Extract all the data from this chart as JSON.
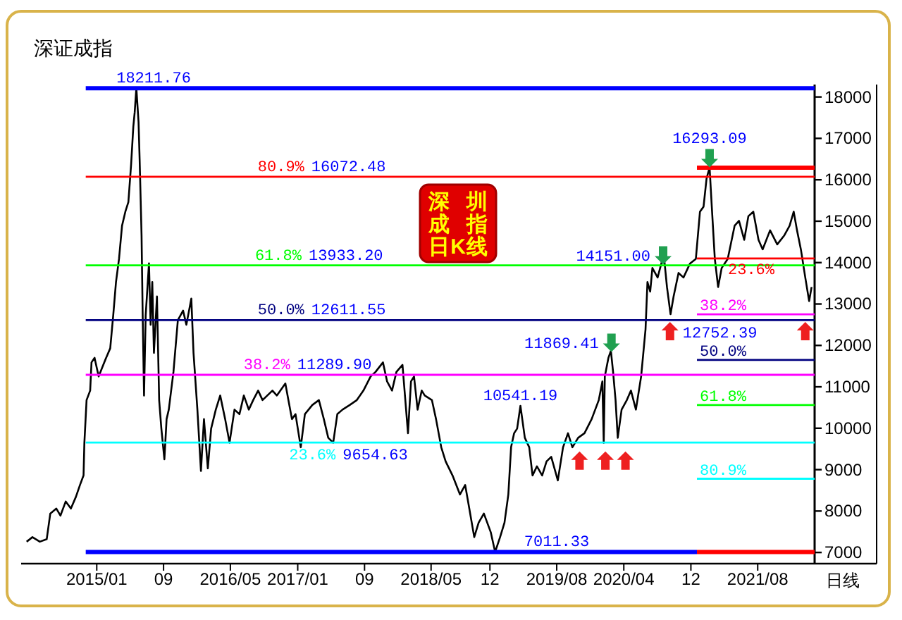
{
  "chart_data": {
    "type": "line",
    "title": "深证成指",
    "xlim": [
      "2014-04-01",
      "2022-02-24"
    ],
    "xticks": [
      {
        "value": "2015-01-01",
        "label": "2015/01"
      },
      {
        "value": "2015-09-01",
        "label": "09"
      },
      {
        "value": "2016-05-01",
        "label": "2016/05"
      },
      {
        "value": "2017-01-01",
        "label": "2017/01"
      },
      {
        "value": "2017-09-01",
        "label": "09"
      },
      {
        "value": "2018-05-01",
        "label": "2018/05"
      },
      {
        "value": "2018-12-01",
        "label": "12"
      },
      {
        "value": "2019-08-01",
        "label": "2019/08"
      },
      {
        "value": "2020-04-01",
        "label": "2020/04"
      },
      {
        "value": "2020-12-01",
        "label": "12"
      },
      {
        "value": "2021-08-01",
        "label": "2021/08"
      }
    ],
    "ylim": [
      6730,
      18300
    ],
    "yticks": [
      7000,
      8000,
      9000,
      10000,
      11000,
      12000,
      13000,
      14000,
      15000,
      16000,
      17000,
      18000
    ],
    "series": [
      {
        "type": "line",
        "color": "#000000",
        "x": [
          "2014-04-21",
          "2014-05-12",
          "2014-06-08",
          "2014-07-03",
          "2014-07-16",
          "2014-08-07",
          "2014-08-22",
          "2014-09-10",
          "2014-09-29",
          "2014-10-17",
          "2014-11-01",
          "2014-11-14",
          "2014-11-17",
          "2014-11-25",
          "2014-12-08",
          "2014-12-13",
          "2014-12-24",
          "2015-01-08",
          "2015-01-21",
          "2015-02-04",
          "2015-02-19",
          "2015-03-02",
          "2015-03-12",
          "2015-03-23",
          "2015-04-03",
          "2015-04-15",
          "2015-04-26",
          "2015-05-06",
          "2015-05-14",
          "2015-05-19",
          "2015-05-25",
          "2015-06-02",
          "2015-06-06",
          "2015-06-13",
          "2015-06-17",
          "2015-06-22",
          "2015-06-28",
          "2015-07-10",
          "2015-07-16",
          "2015-07-22",
          "2015-07-28",
          "2015-08-08",
          "2015-08-16",
          "2015-08-24",
          "2015-09-04",
          "2015-09-12",
          "2015-09-20",
          "2015-10-07",
          "2015-10-23",
          "2015-11-11",
          "2015-11-23",
          "2015-12-11",
          "2015-12-19",
          "2016-01-02",
          "2016-01-15",
          "2016-01-26",
          "2016-02-09",
          "2016-02-21",
          "2016-03-09",
          "2016-03-25",
          "2016-04-12",
          "2016-04-28",
          "2016-05-16",
          "2016-06-03",
          "2016-06-19",
          "2016-07-07",
          "2016-07-23",
          "2016-08-10",
          "2016-08-26",
          "2016-10-01",
          "2016-10-17",
          "2016-11-17",
          "2016-11-28",
          "2016-12-11",
          "2016-12-24",
          "2017-01-12",
          "2017-01-27",
          "2017-02-23",
          "2017-03-19",
          "2017-04-06",
          "2017-04-22",
          "2017-05-10",
          "2017-05-25",
          "2017-06-13",
          "2017-07-09",
          "2017-08-04",
          "2017-08-28",
          "2017-09-23",
          "2017-10-11",
          "2017-11-07",
          "2017-11-22",
          "2017-12-10",
          "2017-12-26",
          "2018-01-17",
          "2018-02-06",
          "2018-02-17",
          "2018-02-28",
          "2018-03-13",
          "2018-03-28",
          "2018-04-08",
          "2018-05-04",
          "2018-05-19",
          "2018-06-07",
          "2018-06-23",
          "2018-07-18",
          "2018-08-14",
          "2018-09-02",
          "2018-09-17",
          "2018-10-05",
          "2018-10-21",
          "2018-11-09",
          "2018-12-04",
          "2018-12-20",
          "2019-01-07",
          "2019-01-23",
          "2019-02-06",
          "2019-02-16",
          "2019-02-27",
          "2019-03-10",
          "2019-03-22",
          "2019-04-07",
          "2019-04-23",
          "2019-05-05",
          "2019-05-21",
          "2019-06-09",
          "2019-06-25",
          "2019-07-12",
          "2019-08-05",
          "2019-08-24",
          "2019-09-11",
          "2019-09-27",
          "2019-10-18",
          "2019-11-10",
          "2019-12-06",
          "2020-01-01",
          "2020-01-14",
          "2020-01-19",
          "2020-01-23",
          "2020-02-05",
          "2020-02-14",
          "2020-02-22",
          "2020-03-02",
          "2020-03-10",
          "2020-03-24",
          "2020-04-12",
          "2020-04-27",
          "2020-05-15",
          "2020-06-03",
          "2020-06-11",
          "2020-06-19",
          "2020-06-26",
          "2020-07-06",
          "2020-07-14",
          "2020-08-02",
          "2020-08-18",
          "2020-08-25",
          "2020-09-05",
          "2020-09-18",
          "2020-09-29",
          "2020-10-17",
          "2020-11-04",
          "2020-11-28",
          "2020-12-19",
          "2021-01-03",
          "2021-01-16",
          "2021-01-27",
          "2021-02-07",
          "2021-02-15",
          "2021-02-26",
          "2021-03-10",
          "2021-03-23",
          "2021-04-14",
          "2021-05-09",
          "2021-05-25",
          "2021-06-13",
          "2021-06-28",
          "2021-07-16",
          "2021-08-04",
          "2021-08-19",
          "2021-09-15",
          "2021-10-11",
          "2021-11-06",
          "2021-11-25",
          "2021-12-10",
          "2021-12-22",
          "2022-01-05",
          "2022-01-21",
          "2022-02-04",
          "2022-02-13"
        ],
        "values": [
          7260,
          7370,
          7260,
          7320,
          7940,
          8060,
          7890,
          8230,
          8060,
          8340,
          8630,
          8860,
          9650,
          10680,
          10910,
          11590,
          11700,
          11250,
          11470,
          11700,
          11930,
          12730,
          13530,
          14090,
          14890,
          15230,
          15460,
          16370,
          17280,
          17630,
          18211.76,
          17400,
          16490,
          14660,
          12730,
          10790,
          12730,
          13980,
          12500,
          13530,
          11820,
          13180,
          10680,
          9990,
          9250,
          10220,
          10450,
          11360,
          12610,
          12840,
          12500,
          13130,
          11820,
          10450,
          8970,
          10220,
          9030,
          9990,
          10450,
          10790,
          10220,
          9650,
          10450,
          10340,
          10790,
          10450,
          10680,
          10910,
          10680,
          10910,
          10790,
          11080,
          10680,
          10220,
          10340,
          9540,
          10340,
          10560,
          10680,
          10220,
          9770,
          9650,
          10340,
          10450,
          10560,
          10680,
          10910,
          11250,
          11360,
          11590,
          11130,
          10910,
          11360,
          11530,
          9880,
          11130,
          11250,
          10450,
          10910,
          10790,
          10680,
          10220,
          9540,
          9200,
          8860,
          8400,
          8630,
          8060,
          7370,
          7720,
          7940,
          7490,
          7011.33,
          7370,
          7720,
          8400,
          9540,
          9880,
          9990,
          10541.19,
          9770,
          9540,
          8860,
          9080,
          8860,
          9200,
          9310,
          8740,
          9540,
          9880,
          9540,
          9770,
          9880,
          10220,
          10680,
          11130,
          9650,
          11250,
          11700,
          11869.41,
          11360,
          10680,
          9770,
          10450,
          10680,
          10910,
          10450,
          11250,
          11820,
          12390,
          13530,
          13300,
          13870,
          13640,
          14040,
          14151,
          13410,
          12752.39,
          13180,
          13750,
          13640,
          13980,
          14090,
          15230,
          15350,
          16030,
          16293.09,
          15350,
          14090,
          13410,
          13870,
          14090,
          14890,
          15010,
          14550,
          15120,
          15230,
          14550,
          14320,
          14780,
          14440,
          14660,
          14890,
          15230,
          14780,
          14320,
          13640,
          13070,
          13410
        ]
      },
      {
        "type": "line",
        "color": "#0000ff",
        "x": [
          "2014-11-22",
          "2022-02-24"
        ],
        "values": [
          18211.76,
          18211.76
        ]
      },
      {
        "type": "line",
        "name": "80.9%",
        "color": "#ff0000",
        "x": [
          "2014-11-22",
          "2022-02-24"
        ],
        "values": [
          16072.48,
          16072.48
        ]
      },
      {
        "type": "line",
        "name": "61.8%",
        "color": "#00ff00",
        "x": [
          "2014-11-22",
          "2022-02-24"
        ],
        "values": [
          13933.2,
          13933.2
        ]
      },
      {
        "type": "line",
        "name": "50.0%",
        "color": "#000080",
        "x": [
          "2014-11-22",
          "2022-02-24"
        ],
        "values": [
          12611.55,
          12611.55
        ]
      },
      {
        "type": "line",
        "name": "38.2%",
        "color": "#ff00ff",
        "x": [
          "2014-11-22",
          "2022-02-24"
        ],
        "values": [
          11289.9,
          11289.9
        ]
      },
      {
        "type": "line",
        "name": "23.6%",
        "color": "#00ffff",
        "x": [
          "2014-11-22",
          "2022-02-24"
        ],
        "values": [
          9654.63,
          9654.63
        ]
      },
      {
        "type": "line",
        "color": "#0000ff",
        "x": [
          "2014-11-22",
          "2020-12-23"
        ],
        "values": [
          7011.33,
          7011.33
        ]
      },
      {
        "type": "line",
        "color": "#ff0000",
        "x": [
          "2020-12-23",
          "2022-02-24"
        ],
        "values": [
          16293.09,
          16293.09
        ]
      },
      {
        "type": "line",
        "name": "23.6%",
        "color": "#ff0000",
        "x": [
          "2020-12-23",
          "2022-02-24"
        ],
        "values": [
          14100,
          14100
        ]
      },
      {
        "type": "line",
        "name": "38.2%",
        "color": "#ff00ff",
        "x": [
          "2020-12-23",
          "2022-02-24"
        ],
        "values": [
          12750,
          12750
        ]
      },
      {
        "type": "line",
        "name": "50.0%",
        "color": "#000080",
        "x": [
          "2020-12-23",
          "2022-02-24"
        ],
        "values": [
          11650,
          11650
        ]
      },
      {
        "type": "line",
        "name": "61.8%",
        "color": "#00ff00",
        "x": [
          "2020-12-23",
          "2022-02-24"
        ],
        "values": [
          10560,
          10560
        ]
      },
      {
        "type": "line",
        "name": "80.9%",
        "color": "#00ffff",
        "x": [
          "2020-12-23",
          "2022-02-24"
        ],
        "values": [
          8780,
          8780
        ]
      },
      {
        "type": "line",
        "color": "#ff0000",
        "x": [
          "2020-12-23",
          "2022-02-24"
        ],
        "values": [
          7011.33,
          7011.33
        ]
      },
      {
        "type": "scatter",
        "marker": "triangle",
        "color": "#ee2020",
        "x": [
          "2019-10-23",
          "2020-01-25",
          "2020-04-07",
          "2020-09-16",
          "2022-01-21"
        ],
        "values": [
          9200,
          9200,
          9200,
          12330,
          12330
        ]
      },
      {
        "type": "scatter",
        "marker": "triangle",
        "color": "#20a050",
        "x": [
          "2020-02-16",
          "2020-08-22",
          "2021-02-07"
        ],
        "values": [
          12080,
          14190,
          16540
        ]
      }
    ],
    "annotations": [
      "深圳成指日K线",
      "日线",
      {
        "text": "18211.76",
        "x": "2015-07-27",
        "y": 18211.76
      },
      {
        "text": "16072.48",
        "x": "2017-07-05",
        "y": 16072.48
      },
      {
        "text": "13933.20",
        "x": "2017-06-25",
        "y": 13933.2
      },
      {
        "text": "12611.55",
        "x": "2017-07-05",
        "y": 12611.55
      },
      {
        "text": "11289.90",
        "x": "2017-07-15",
        "y": 11289.9
      },
      {
        "text": "9654.63",
        "x": "2017-10-10",
        "y": 9654.63
      },
      {
        "text": "7011.33",
        "x": "2019-08-01",
        "y": 7011.33
      },
      {
        "text": "16293.09",
        "x": "2021-02-07",
        "y": 16293.09
      },
      {
        "text": "14151.00",
        "x": "2020-08-25",
        "y": 14151
      },
      {
        "text": "11869.41",
        "x": "2020-02-14",
        "y": 11869.41
      },
      {
        "text": "10541.19",
        "x": "2019-03-22",
        "y": 10541.19
      },
      {
        "text": "12752.39",
        "x": "2020-09-18",
        "y": 12752.39
      }
    ]
  }
}
